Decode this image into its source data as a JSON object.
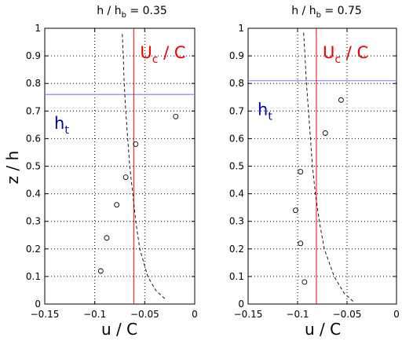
{
  "colors": {
    "uc_line": "#ff0000",
    "ht_line": "#8888ff",
    "ht_text": "#0000aa",
    "uc_text": "#ee0000",
    "curve": "#000000",
    "grid": "#000000"
  },
  "chart_data": [
    {
      "type": "line",
      "title": {
        "main": "h / h",
        "sub": "b",
        "value": " = 0.35"
      },
      "xlabel": "u / C",
      "ylabel": "z / h",
      "xlim": [
        -0.15,
        0
      ],
      "ylim": [
        0,
        1
      ],
      "grid": true,
      "xticks": [
        -0.15,
        -0.1,
        -0.05,
        0
      ],
      "xtick_labels": [
        "−0.15",
        "−0.1",
        "−0.05",
        "0"
      ],
      "yticks": [
        0,
        0.1,
        0.2,
        0.3,
        0.4,
        0.5,
        0.6,
        0.7,
        0.8,
        0.9,
        1
      ],
      "ytick_labels": [
        "0",
        "0.1",
        "0.2",
        "0.3",
        "0.4",
        "0.5",
        "0.6",
        "0.7",
        "0.8",
        "0.9",
        "1"
      ],
      "uc_annotation": {
        "main": "U",
        "sub": "c",
        "rest": " / C",
        "x": -0.061
      },
      "ht_annotation": {
        "main": "h",
        "sub": "t",
        "z": 0.76
      },
      "observations": {
        "x": [
          -0.094,
          -0.088,
          -0.078,
          -0.069,
          -0.059,
          -0.019
        ],
        "z": [
          0.12,
          0.24,
          0.36,
          0.46,
          0.58,
          0.68
        ]
      },
      "model_curve": {
        "z": [
          0.02,
          0.05,
          0.1,
          0.2,
          0.3,
          0.4,
          0.5,
          0.6,
          0.7,
          0.8,
          0.9,
          0.98
        ],
        "x": [
          -0.03,
          -0.039,
          -0.047,
          -0.055,
          -0.059,
          -0.062,
          -0.065,
          -0.067,
          -0.069,
          -0.0705,
          -0.0715,
          -0.0725
        ]
      }
    },
    {
      "type": "line",
      "title": {
        "main": "h / h",
        "sub": "b",
        "value": " = 0.75"
      },
      "xlabel": "u / C",
      "ylabel": "",
      "xlim": [
        -0.15,
        0
      ],
      "ylim": [
        0,
        1
      ],
      "grid": true,
      "xticks": [
        -0.15,
        -0.1,
        -0.05,
        0
      ],
      "xtick_labels": [
        "−0.15",
        "−0.1",
        "−0.05",
        "0"
      ],
      "yticks": [
        0,
        0.1,
        0.2,
        0.3,
        0.4,
        0.5,
        0.6,
        0.7,
        0.8,
        0.9,
        1
      ],
      "ytick_labels": [
        "0",
        "0.1",
        "0.2",
        "0.3",
        "0.4",
        "0.5",
        "0.6",
        "0.7",
        "0.8",
        "0.9",
        "1"
      ],
      "uc_annotation": {
        "main": "U",
        "sub": "c",
        "rest": " / C",
        "x": -0.081
      },
      "ht_annotation": {
        "main": "h",
        "sub": "t",
        "z": 0.81
      },
      "observations": {
        "x": [
          -0.093,
          -0.097,
          -0.102,
          -0.097,
          -0.072,
          -0.056
        ],
        "z": [
          0.08,
          0.22,
          0.34,
          0.48,
          0.62,
          0.74
        ]
      },
      "model_curve": {
        "z": [
          0.01,
          0.04,
          0.1,
          0.2,
          0.3,
          0.4,
          0.5,
          0.6,
          0.7,
          0.8,
          0.9,
          0.99
        ],
        "x": [
          -0.044,
          -0.053,
          -0.063,
          -0.073,
          -0.078,
          -0.082,
          -0.085,
          -0.087,
          -0.089,
          -0.091,
          -0.0925,
          -0.094
        ]
      }
    }
  ]
}
